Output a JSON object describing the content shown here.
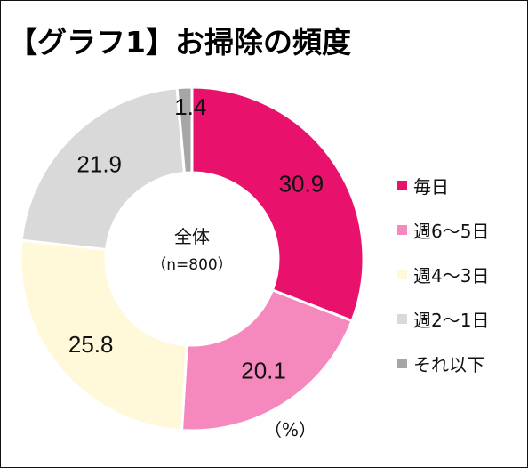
{
  "title": "【グラフ1】お掃除の頻度",
  "center": {
    "line1": "全体",
    "line2": "（n=800）"
  },
  "unit": "（%）",
  "chart_data": {
    "type": "pie",
    "variant": "donut",
    "legend_position": "right",
    "categories": [
      "毎日",
      "週6～5日",
      "週4～3日",
      "週2～1日",
      "それ以下"
    ],
    "values": [
      30.9,
      20.1,
      25.8,
      21.9,
      1.4
    ],
    "labels": [
      "30.9",
      "20.1",
      "25.8",
      "21.9",
      "1.4"
    ],
    "colors": [
      "#E8116B",
      "#F589BD",
      "#FFF9D9",
      "#D9D9D9",
      "#A6A6A6"
    ]
  }
}
